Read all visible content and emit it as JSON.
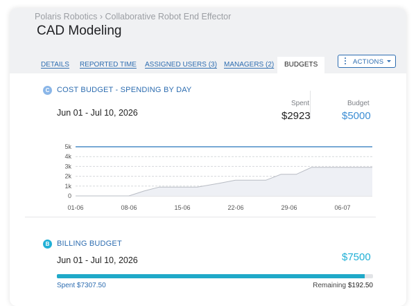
{
  "breadcrumb": {
    "org": "Polaris Robotics",
    "separator": "›",
    "project": "Collaborative Robot End Effector"
  },
  "page_title": "CAD Modeling",
  "tabs": [
    {
      "label": "DETAILS",
      "active": false
    },
    {
      "label": "REPORTED TIME",
      "active": false
    },
    {
      "label": "ASSIGNED USERS (3)",
      "active": false
    },
    {
      "label": "MANAGERS (2)",
      "active": false
    },
    {
      "label": "BUDGETS",
      "active": true
    }
  ],
  "actions_button": {
    "label": "ACTIONS",
    "icon": "vertical-dots-icon"
  },
  "cost_budget": {
    "badge": "C",
    "title": "COST BUDGET - SPENDING BY DAY",
    "date_range": "Jun 01 - Jul 10, 2026",
    "spent_label": "Spent",
    "spent_value": "$2923",
    "budget_label": "Budget",
    "budget_value": "$5000"
  },
  "chart_data": {
    "type": "area",
    "x_ticks": [
      "01-06",
      "08-06",
      "15-06",
      "22-06",
      "29-06",
      "06-07"
    ],
    "y_ticks": [
      "0",
      "1k",
      "2k",
      "3k",
      "4k",
      "5k"
    ],
    "ylim": [
      0,
      5000
    ],
    "xlim": [
      "2026-06-01",
      "2026-07-10"
    ],
    "budget_line": 5000,
    "series": [
      {
        "x": [
          "2026-06-01",
          "2026-06-08",
          "2026-06-10",
          "2026-06-12",
          "2026-06-17",
          "2026-06-20",
          "2026-06-22",
          "2026-06-26",
          "2026-06-28",
          "2026-06-30",
          "2026-07-02",
          "2026-07-10"
        ],
        "y": [
          0,
          0,
          500,
          900,
          900,
          1300,
          1600,
          1600,
          2200,
          2200,
          2900,
          2900
        ]
      }
    ],
    "grid": true
  },
  "billing_budget": {
    "badge": "B",
    "title": "BILLING BUDGET",
    "date_range": "Jun 01 - Jul 10, 2026",
    "budget_value": "$7500",
    "progress_fraction": 0.974,
    "spent_label": "Spent",
    "spent_value": "$7307.50",
    "remaining_label": "Remaining",
    "remaining_value": "$192.50"
  },
  "colors": {
    "accent": "#2c6cb0",
    "budget_value": "#3d8ed4",
    "cost_badge": "#8ab6e8",
    "billing_badge": "#21b0d6",
    "progress": "#1fa9c8",
    "budget_line": "#4a8bc6"
  }
}
